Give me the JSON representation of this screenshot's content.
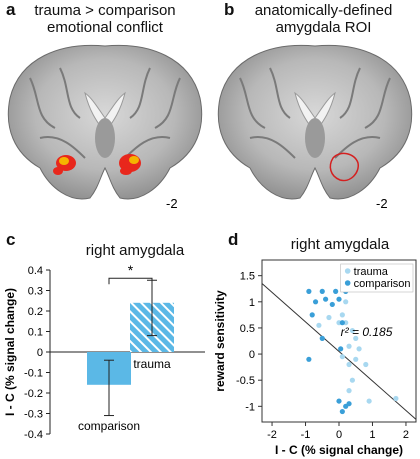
{
  "panels": {
    "a": {
      "letter": "a",
      "title_line1": "trauma > comparison",
      "title_line2": "emotional conflict",
      "slice_label": "-2"
    },
    "b": {
      "letter": "b",
      "title_line1": "anatomically-defined",
      "title_line2": "amygdala ROI",
      "slice_label": "-2"
    },
    "c": {
      "letter": "c",
      "title": "right amygdala"
    },
    "d": {
      "letter": "d",
      "title": "right amygdala"
    }
  },
  "colors": {
    "comparison_bar": "#5bb8e6",
    "trauma_bar": "#5bb8e6",
    "trauma_point": "#a8d8f0",
    "comparison_point": "#3a9fd8",
    "activation": "#e8271c",
    "activation_hot": "#f5b400",
    "roi_outline": "#d42020"
  },
  "chart_data": [
    {
      "type": "bar",
      "title": "right amygdala",
      "ylabel": "I - C (% signal change)",
      "ylim": [
        -0.4,
        0.4
      ],
      "yticks": [
        "0.4",
        "0.3",
        "0.2",
        "0.1",
        "0",
        "-0.1",
        "-0.2",
        "-0.3",
        "-0.4"
      ],
      "categories": [
        "comparison",
        "trauma"
      ],
      "values": [
        -0.16,
        0.24
      ],
      "error_low": [
        -0.31,
        0.08
      ],
      "error_high": [
        -0.04,
        0.35
      ],
      "significance": "*"
    },
    {
      "type": "scatter",
      "title": "right amygdala",
      "xlabel": "I - C (% signal change)",
      "ylabel": "reward sensitivity",
      "xlim": [
        -2.3,
        2.3
      ],
      "ylim": [
        -1.3,
        1.8
      ],
      "xticks": [
        "-2",
        "-1",
        "0",
        "1",
        "2"
      ],
      "yticks": [
        "1.5",
        "1",
        "0.5",
        "0",
        "-0.5",
        "-1"
      ],
      "annotation": "r² = 0.185",
      "legend": [
        "trauma",
        "comparison"
      ],
      "legend_position": "top-right",
      "series": [
        {
          "name": "trauma",
          "x": [
            -0.6,
            -0.3,
            0.0,
            0.1,
            0.2,
            0.4,
            0.5,
            0.3,
            0.6,
            0.3,
            0.5,
            0.1,
            0.8,
            0.4,
            0.3,
            0.9,
            1.7,
            0.2
          ],
          "y": [
            0.55,
            0.7,
            0.6,
            0.75,
            0.6,
            0.45,
            0.3,
            0.15,
            0.1,
            -0.2,
            -0.1,
            -0.05,
            -0.2,
            -0.5,
            -0.7,
            -0.9,
            -0.85,
            1.0
          ]
        },
        {
          "name": "comparison",
          "x": [
            -0.9,
            -0.7,
            -0.8,
            -0.5,
            -0.4,
            -0.2,
            -0.1,
            0.2,
            0.0,
            0.1,
            -0.5,
            -0.9,
            0.0,
            0.3,
            0.1,
            0.2,
            0.05
          ],
          "y": [
            1.2,
            1.0,
            0.75,
            1.2,
            1.05,
            0.95,
            1.2,
            1.2,
            1.05,
            0.6,
            0.3,
            -0.1,
            -0.9,
            -0.95,
            -1.1,
            -1.0,
            0.1
          ]
        }
      ],
      "fit_line": {
        "x": [
          -2.3,
          2.3
        ],
        "y": [
          1.35,
          -1.25
        ]
      }
    }
  ]
}
